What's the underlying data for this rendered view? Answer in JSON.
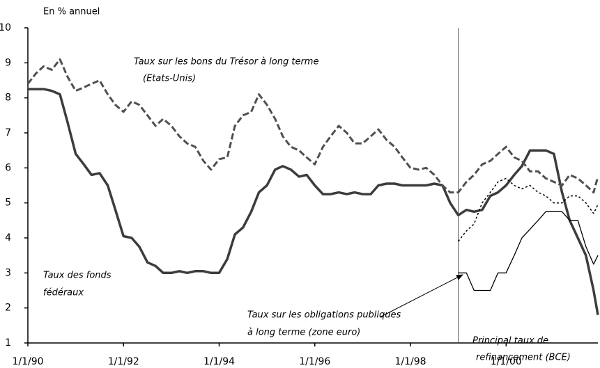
{
  "chart_data": {
    "type": "line",
    "y_label": "En % annuel",
    "xlim": [
      1990,
      2001.92
    ],
    "ylim": [
      1,
      10
    ],
    "yticks": [
      1,
      2,
      3,
      4,
      5,
      6,
      7,
      8,
      9,
      10
    ],
    "xticks": [
      {
        "value": 1990,
        "label": "1/1/90"
      },
      {
        "value": 1992,
        "label": "1/1/92"
      },
      {
        "value": 1994,
        "label": "1/1/94"
      },
      {
        "value": 1996,
        "label": "1/1/96"
      },
      {
        "value": 1998,
        "label": "1/1/98"
      },
      {
        "value": 2000,
        "label": "1/1/00"
      }
    ],
    "vline": 1999,
    "x": [
      1990,
      1990.17,
      1990.33,
      1990.5,
      1990.67,
      1990.83,
      1991,
      1991.17,
      1991.33,
      1991.5,
      1991.67,
      1991.83,
      1992,
      1992.17,
      1992.33,
      1992.5,
      1992.67,
      1992.83,
      1993,
      1993.17,
      1993.33,
      1993.5,
      1993.67,
      1993.83,
      1994,
      1994.17,
      1994.33,
      1994.5,
      1994.67,
      1994.83,
      1995,
      1995.17,
      1995.33,
      1995.5,
      1995.67,
      1995.83,
      1996,
      1996.17,
      1996.33,
      1996.5,
      1996.67,
      1996.83,
      1997,
      1997.17,
      1997.33,
      1997.5,
      1997.67,
      1997.83,
      1998,
      1998.17,
      1998.33,
      1998.5,
      1998.67,
      1998.83,
      1999,
      1999.17,
      1999.33,
      1999.5,
      1999.67,
      1999.83,
      2000,
      2000.17,
      2000.33,
      2000.5,
      2000.67,
      2000.83,
      2001,
      2001.17,
      2001.33,
      2001.5,
      2001.67,
      2001.83,
      2001.92
    ],
    "series": [
      {
        "label": [
          "Taux des fonds",
          "fédéraux"
        ],
        "color": "#3c3c3c",
        "style": "thick",
        "values": [
          8.25,
          8.25,
          8.25,
          8.2,
          8.1,
          7.3,
          6.4,
          6.1,
          5.8,
          5.85,
          5.5,
          4.8,
          4.05,
          4.0,
          3.75,
          3.3,
          3.2,
          3.0,
          3.0,
          3.05,
          3.0,
          3.05,
          3.05,
          3.0,
          3.0,
          3.4,
          4.1,
          4.3,
          4.75,
          5.3,
          5.5,
          5.95,
          6.05,
          5.95,
          5.75,
          5.8,
          5.5,
          5.25,
          5.25,
          5.3,
          5.25,
          5.3,
          5.25,
          5.25,
          5.5,
          5.55,
          5.55,
          5.5,
          5.5,
          5.5,
          5.5,
          5.55,
          5.5,
          5.0,
          4.65,
          4.8,
          4.75,
          4.8,
          5.2,
          5.3,
          5.5,
          5.8,
          6.05,
          6.5,
          6.5,
          6.5,
          6.4,
          5.3,
          4.5,
          4.0,
          3.5,
          2.5,
          1.8
        ]
      },
      {
        "label": [
          "Taux sur les bons du Trésor à long terme",
          "(Etats-Unis)"
        ],
        "color": "#505050",
        "style": "dashed",
        "values": [
          8.4,
          8.7,
          8.9,
          8.8,
          9.1,
          8.6,
          8.2,
          8.3,
          8.4,
          8.5,
          8.1,
          7.8,
          7.6,
          7.9,
          7.8,
          7.5,
          7.2,
          7.4,
          7.2,
          6.9,
          6.7,
          6.6,
          6.2,
          5.95,
          6.25,
          6.3,
          7.2,
          7.5,
          7.6,
          8.1,
          7.8,
          7.4,
          6.9,
          6.6,
          6.5,
          6.3,
          6.1,
          6.6,
          6.9,
          7.2,
          7.0,
          6.7,
          6.7,
          6.9,
          7.1,
          6.8,
          6.6,
          6.3,
          6.0,
          5.95,
          6.0,
          5.8,
          5.5,
          5.3,
          5.3,
          5.6,
          5.8,
          6.1,
          6.2,
          6.4,
          6.6,
          6.3,
          6.2,
          5.9,
          5.9,
          5.7,
          5.6,
          5.5,
          5.8,
          5.7,
          5.5,
          5.3,
          5.75
        ]
      },
      {
        "label": [
          "Taux sur les obligations publiques",
          "à long terme (zone euro)"
        ],
        "color": "#000000",
        "style": "dotted",
        "values": [
          null,
          null,
          null,
          null,
          null,
          null,
          null,
          null,
          null,
          null,
          null,
          null,
          null,
          null,
          null,
          null,
          null,
          null,
          null,
          null,
          null,
          null,
          null,
          null,
          null,
          null,
          null,
          null,
          null,
          null,
          null,
          null,
          null,
          null,
          null,
          null,
          null,
          null,
          null,
          null,
          null,
          null,
          null,
          null,
          null,
          null,
          null,
          null,
          null,
          null,
          null,
          null,
          null,
          null,
          3.9,
          4.2,
          4.4,
          5.0,
          5.3,
          5.6,
          5.7,
          5.5,
          5.4,
          5.5,
          5.3,
          5.2,
          5.0,
          5.0,
          5.2,
          5.2,
          5.0,
          4.7,
          4.95
        ]
      },
      {
        "label": [
          "Principal taux de",
          "refinancement (BCE)"
        ],
        "color": "#000000",
        "style": "thin",
        "values": [
          null,
          null,
          null,
          null,
          null,
          null,
          null,
          null,
          null,
          null,
          null,
          null,
          null,
          null,
          null,
          null,
          null,
          null,
          null,
          null,
          null,
          null,
          null,
          null,
          null,
          null,
          null,
          null,
          null,
          null,
          null,
          null,
          null,
          null,
          null,
          null,
          null,
          null,
          null,
          null,
          null,
          null,
          null,
          null,
          null,
          null,
          null,
          null,
          null,
          null,
          null,
          null,
          null,
          null,
          3.0,
          3.0,
          2.5,
          2.5,
          2.5,
          3.0,
          3.0,
          3.5,
          4.0,
          4.25,
          4.5,
          4.75,
          4.75,
          4.75,
          4.5,
          4.5,
          3.75,
          3.25,
          3.5
        ]
      }
    ]
  }
}
